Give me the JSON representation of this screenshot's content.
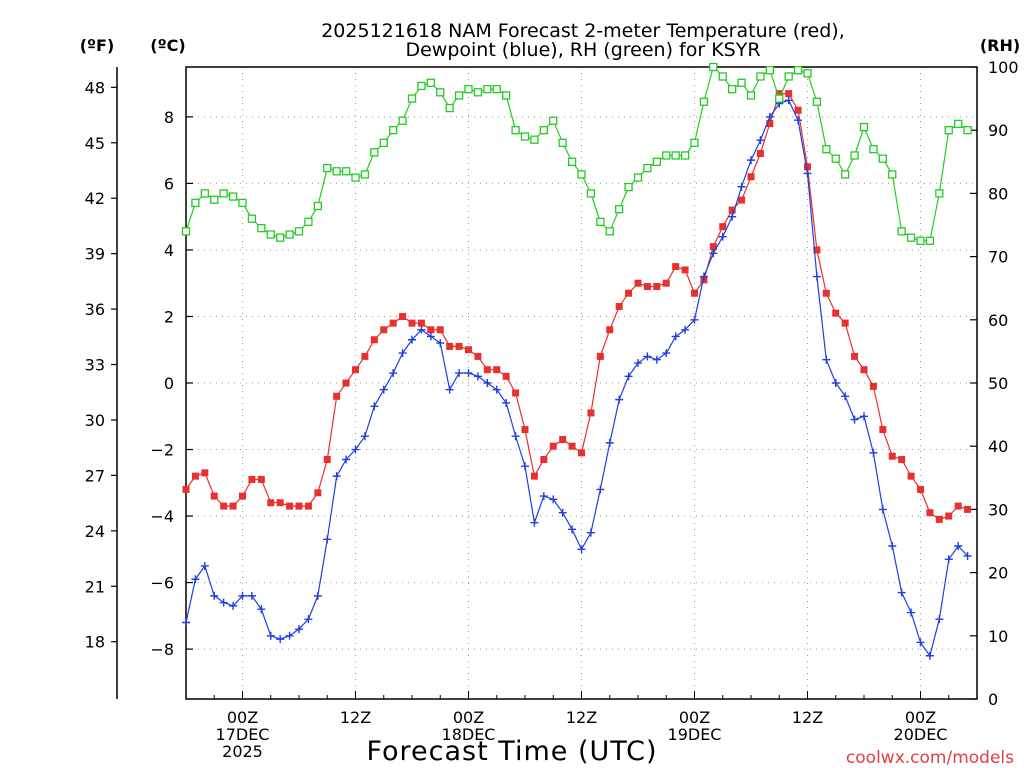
{
  "chart_data": {
    "type": "line",
    "title_line1": "2025121618 NAM Forecast 2-meter Temperature (red),",
    "title_line2": "Dewpoint (blue), RH (green) for KSYR",
    "xlabel": "Forecast Time (UTC)",
    "credit": "coolwx.com/models",
    "left_outer_unit": "(ºF)",
    "left_inner_unit": "(ºC)",
    "right_unit": "(RH)",
    "celsius_axis": {
      "range": [
        -9.5,
        9.5
      ],
      "ticks": [
        -8,
        -6,
        -4,
        -2,
        0,
        2,
        4,
        6,
        8
      ],
      "tick_labels": [
        "−8",
        "−6",
        "−4",
        "−2",
        "0",
        "2",
        "4",
        "6",
        "8"
      ]
    },
    "fahrenheit_axis": {
      "ticks": [
        18,
        21,
        24,
        27,
        30,
        33,
        36,
        39,
        42,
        45,
        48
      ],
      "tick_labels": [
        "18",
        "21",
        "24",
        "27",
        "30",
        "33",
        "36",
        "39",
        "42",
        "45",
        "48"
      ]
    },
    "rh_axis": {
      "range": [
        0,
        100
      ],
      "ticks": [
        0,
        10,
        20,
        30,
        40,
        50,
        60,
        70,
        80,
        90,
        100
      ],
      "tick_labels": [
        "0",
        "10",
        "20",
        "30",
        "40",
        "50",
        "60",
        "70",
        "80",
        "90",
        "100"
      ]
    },
    "x_axis": {
      "unit": "forecast hour",
      "range": [
        0,
        84
      ],
      "ticks": [
        6,
        18,
        30,
        42,
        54,
        66,
        78
      ],
      "tick_labels": [
        {
          "hour": 6,
          "lines": [
            "00Z",
            "17DEC",
            "2025"
          ]
        },
        {
          "hour": 18,
          "lines": [
            "12Z"
          ]
        },
        {
          "hour": 30,
          "lines": [
            "00Z",
            "18DEC"
          ]
        },
        {
          "hour": 42,
          "lines": [
            "12Z"
          ]
        },
        {
          "hour": 54,
          "lines": [
            "00Z",
            "19DEC"
          ]
        },
        {
          "hour": 66,
          "lines": [
            "12Z"
          ]
        },
        {
          "hour": 78,
          "lines": [
            "00Z",
            "20DEC"
          ]
        }
      ]
    },
    "series": [
      {
        "name": "Temperature",
        "unit": "degC",
        "color": "#e8302e",
        "marker": "filled-square",
        "values": [
          [
            0,
            -3.2
          ],
          [
            1,
            -2.8
          ],
          [
            2,
            -2.7
          ],
          [
            3,
            -3.4
          ],
          [
            4,
            -3.7
          ],
          [
            5,
            -3.7
          ],
          [
            6,
            -3.4
          ],
          [
            7,
            -2.9
          ],
          [
            8,
            -2.9
          ],
          [
            9,
            -3.6
          ],
          [
            10,
            -3.6
          ],
          [
            11,
            -3.7
          ],
          [
            12,
            -3.7
          ],
          [
            13,
            -3.7
          ],
          [
            14,
            -3.3
          ],
          [
            15,
            -2.3
          ],
          [
            16,
            -0.4
          ],
          [
            17,
            0.0
          ],
          [
            18,
            0.4
          ],
          [
            19,
            0.8
          ],
          [
            20,
            1.3
          ],
          [
            21,
            1.6
          ],
          [
            22,
            1.8
          ],
          [
            23,
            2.0
          ],
          [
            24,
            1.8
          ],
          [
            25,
            1.8
          ],
          [
            26,
            1.6
          ],
          [
            27,
            1.6
          ],
          [
            28,
            1.1
          ],
          [
            29,
            1.1
          ],
          [
            30,
            1.0
          ],
          [
            31,
            0.8
          ],
          [
            32,
            0.4
          ],
          [
            33,
            0.4
          ],
          [
            34,
            0.2
          ],
          [
            35,
            -0.3
          ],
          [
            36,
            -1.4
          ],
          [
            37,
            -2.8
          ],
          [
            38,
            -2.3
          ],
          [
            39,
            -1.9
          ],
          [
            40,
            -1.7
          ],
          [
            41,
            -1.9
          ],
          [
            42,
            -2.1
          ],
          [
            43,
            -0.9
          ],
          [
            44,
            0.8
          ],
          [
            45,
            1.6
          ],
          [
            46,
            2.3
          ],
          [
            47,
            2.7
          ],
          [
            48,
            3.0
          ],
          [
            49,
            2.9
          ],
          [
            50,
            2.9
          ],
          [
            51,
            3.0
          ],
          [
            52,
            3.5
          ],
          [
            53,
            3.4
          ],
          [
            54,
            2.7
          ],
          [
            55,
            3.1
          ],
          [
            56,
            4.1
          ],
          [
            57,
            4.7
          ],
          [
            58,
            5.2
          ],
          [
            59,
            5.5
          ],
          [
            60,
            6.2
          ],
          [
            61,
            6.9
          ],
          [
            62,
            7.8
          ],
          [
            63,
            8.7
          ],
          [
            64,
            8.7
          ],
          [
            65,
            8.2
          ],
          [
            66,
            6.5
          ],
          [
            67,
            4.0
          ],
          [
            68,
            2.7
          ],
          [
            69,
            2.1
          ],
          [
            70,
            1.8
          ],
          [
            71,
            0.8
          ],
          [
            72,
            0.4
          ],
          [
            73,
            -0.1
          ],
          [
            74,
            -1.4
          ],
          [
            75,
            -2.2
          ],
          [
            76,
            -2.3
          ],
          [
            77,
            -2.8
          ],
          [
            78,
            -3.2
          ],
          [
            79,
            -3.9
          ],
          [
            80,
            -4.1
          ],
          [
            81,
            -4.0
          ],
          [
            82,
            -3.7
          ],
          [
            83,
            -3.8
          ]
        ]
      },
      {
        "name": "Dewpoint",
        "unit": "degC",
        "color": "#1f3fe0",
        "marker": "plus",
        "values": [
          [
            0,
            -7.2
          ],
          [
            1,
            -5.9
          ],
          [
            2,
            -5.5
          ],
          [
            3,
            -6.4
          ],
          [
            4,
            -6.6
          ],
          [
            5,
            -6.7
          ],
          [
            6,
            -6.4
          ],
          [
            7,
            -6.4
          ],
          [
            8,
            -6.8
          ],
          [
            9,
            -7.6
          ],
          [
            10,
            -7.7
          ],
          [
            11,
            -7.6
          ],
          [
            12,
            -7.4
          ],
          [
            13,
            -7.1
          ],
          [
            14,
            -6.4
          ],
          [
            15,
            -4.7
          ],
          [
            16,
            -2.8
          ],
          [
            17,
            -2.3
          ],
          [
            18,
            -2.0
          ],
          [
            19,
            -1.6
          ],
          [
            20,
            -0.7
          ],
          [
            21,
            -0.2
          ],
          [
            22,
            0.3
          ],
          [
            23,
            0.9
          ],
          [
            24,
            1.3
          ],
          [
            25,
            1.6
          ],
          [
            26,
            1.4
          ],
          [
            27,
            1.2
          ],
          [
            28,
            -0.2
          ],
          [
            29,
            0.3
          ],
          [
            30,
            0.3
          ],
          [
            31,
            0.2
          ],
          [
            32,
            0.0
          ],
          [
            33,
            -0.2
          ],
          [
            34,
            -0.6
          ],
          [
            35,
            -1.6
          ],
          [
            36,
            -2.5
          ],
          [
            37,
            -4.2
          ],
          [
            38,
            -3.4
          ],
          [
            39,
            -3.5
          ],
          [
            40,
            -3.9
          ],
          [
            41,
            -4.4
          ],
          [
            42,
            -5.0
          ],
          [
            43,
            -4.5
          ],
          [
            44,
            -3.2
          ],
          [
            45,
            -1.8
          ],
          [
            46,
            -0.5
          ],
          [
            47,
            0.2
          ],
          [
            48,
            0.6
          ],
          [
            49,
            0.8
          ],
          [
            50,
            0.7
          ],
          [
            51,
            0.9
          ],
          [
            52,
            1.4
          ],
          [
            53,
            1.6
          ],
          [
            54,
            1.9
          ],
          [
            55,
            3.2
          ],
          [
            56,
            3.9
          ],
          [
            57,
            4.4
          ],
          [
            58,
            5.0
          ],
          [
            59,
            5.9
          ],
          [
            60,
            6.7
          ],
          [
            61,
            7.3
          ],
          [
            62,
            8.0
          ],
          [
            63,
            8.4
          ],
          [
            64,
            8.5
          ],
          [
            65,
            7.9
          ],
          [
            66,
            6.3
          ],
          [
            67,
            3.2
          ],
          [
            68,
            0.7
          ],
          [
            69,
            0.0
          ],
          [
            70,
            -0.4
          ],
          [
            71,
            -1.1
          ],
          [
            72,
            -1.0
          ],
          [
            73,
            -2.1
          ],
          [
            74,
            -3.8
          ],
          [
            75,
            -4.9
          ],
          [
            76,
            -6.3
          ],
          [
            77,
            -6.9
          ],
          [
            78,
            -7.8
          ],
          [
            79,
            -8.2
          ],
          [
            80,
            -7.1
          ],
          [
            81,
            -5.3
          ],
          [
            82,
            -4.9
          ],
          [
            83,
            -5.2
          ]
        ]
      },
      {
        "name": "Relative Humidity",
        "unit": "percent",
        "color": "#22cc22",
        "marker": "open-square",
        "values": [
          [
            0,
            74
          ],
          [
            1,
            78.5
          ],
          [
            2,
            80
          ],
          [
            3,
            79
          ],
          [
            4,
            80
          ],
          [
            5,
            79.5
          ],
          [
            6,
            78.5
          ],
          [
            7,
            76
          ],
          [
            8,
            74.5
          ],
          [
            9,
            73.5
          ],
          [
            10,
            73
          ],
          [
            11,
            73.5
          ],
          [
            12,
            74
          ],
          [
            13,
            75.5
          ],
          [
            14,
            78
          ],
          [
            15,
            84
          ],
          [
            16,
            83.5
          ],
          [
            17,
            83.5
          ],
          [
            18,
            82.5
          ],
          [
            19,
            83
          ],
          [
            20,
            86.5
          ],
          [
            21,
            88
          ],
          [
            22,
            90
          ],
          [
            23,
            91.5
          ],
          [
            24,
            95
          ],
          [
            25,
            97
          ],
          [
            26,
            97.5
          ],
          [
            27,
            96
          ],
          [
            28,
            93.5
          ],
          [
            29,
            95.5
          ],
          [
            30,
            96.5
          ],
          [
            31,
            96
          ],
          [
            32,
            96.5
          ],
          [
            33,
            96.5
          ],
          [
            34,
            95.5
          ],
          [
            35,
            90
          ],
          [
            36,
            89
          ],
          [
            37,
            88.5
          ],
          [
            38,
            90
          ],
          [
            39,
            91.5
          ],
          [
            40,
            88
          ],
          [
            41,
            85
          ],
          [
            42,
            83
          ],
          [
            43,
            80
          ],
          [
            44,
            75.5
          ],
          [
            45,
            74
          ],
          [
            46,
            77.5
          ],
          [
            47,
            81
          ],
          [
            48,
            82.5
          ],
          [
            49,
            84
          ],
          [
            50,
            85
          ],
          [
            51,
            86
          ],
          [
            52,
            86
          ],
          [
            53,
            86
          ],
          [
            54,
            88
          ],
          [
            55,
            94.5
          ],
          [
            56,
            100
          ],
          [
            57,
            98.5
          ],
          [
            58,
            96.5
          ],
          [
            59,
            97.5
          ],
          [
            60,
            95.5
          ],
          [
            61,
            98.5
          ],
          [
            62,
            99.5
          ],
          [
            63,
            95
          ],
          [
            64,
            98.5
          ],
          [
            65,
            99.5
          ],
          [
            66,
            99
          ],
          [
            67,
            94.5
          ],
          [
            68,
            87
          ],
          [
            69,
            85.5
          ],
          [
            70,
            83
          ],
          [
            71,
            86
          ],
          [
            72,
            90.5
          ],
          [
            73,
            87
          ],
          [
            74,
            85.5
          ],
          [
            75,
            83
          ],
          [
            76,
            74
          ],
          [
            77,
            73
          ],
          [
            78,
            72.5
          ],
          [
            79,
            72.5
          ],
          [
            80,
            80
          ],
          [
            81,
            90
          ],
          [
            82,
            91
          ],
          [
            83,
            90
          ]
        ]
      }
    ]
  }
}
